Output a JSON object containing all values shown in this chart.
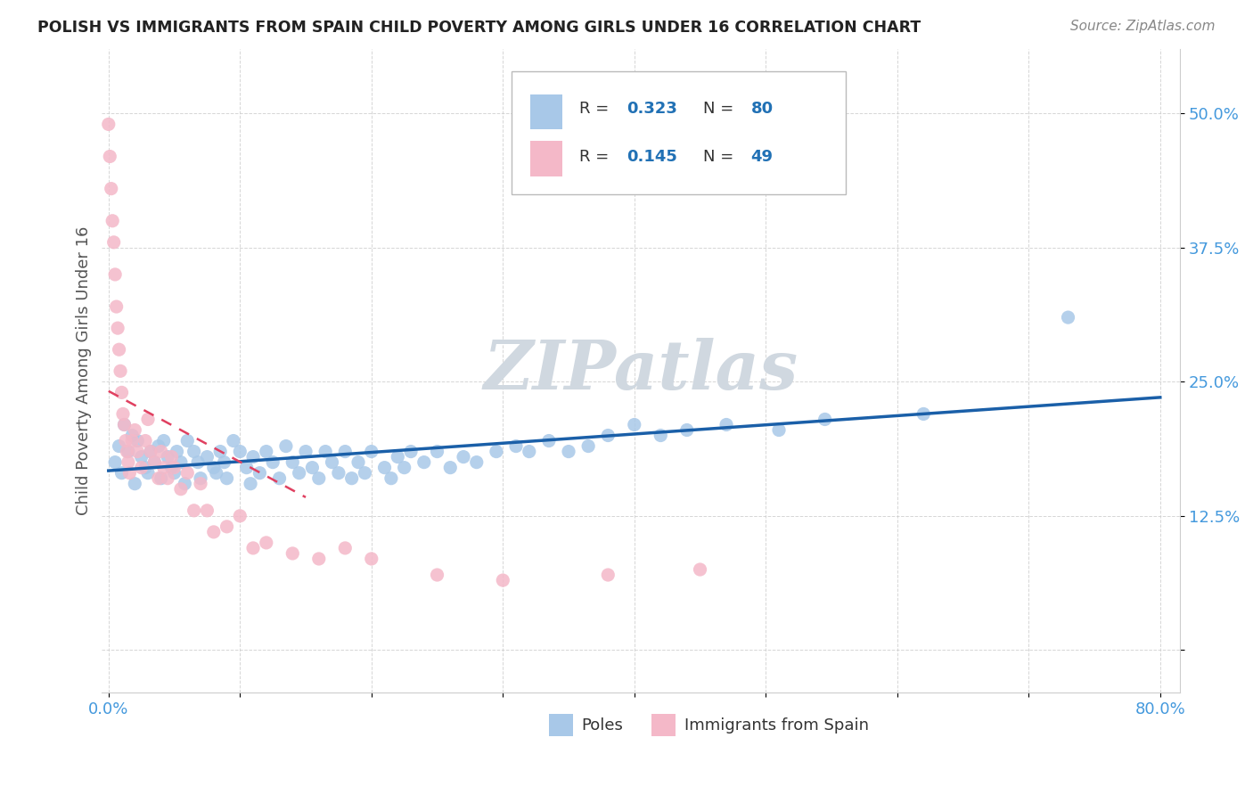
{
  "title": "POLISH VS IMMIGRANTS FROM SPAIN CHILD POVERTY AMONG GIRLS UNDER 16 CORRELATION CHART",
  "source": "Source: ZipAtlas.com",
  "ylabel": "Child Poverty Among Girls Under 16",
  "xlim": [
    -0.005,
    0.815
  ],
  "ylim": [
    -0.04,
    0.56
  ],
  "y_ticks": [
    0.0,
    0.125,
    0.25,
    0.375,
    0.5
  ],
  "y_tick_labels": [
    "",
    "12.5%",
    "25.0%",
    "37.5%",
    "50.0%"
  ],
  "blue_R": 0.323,
  "blue_N": 80,
  "pink_R": 0.145,
  "pink_N": 49,
  "blue_color": "#a8c8e8",
  "pink_color": "#f4b8c8",
  "blue_line_color": "#1a5fa8",
  "pink_line_color": "#e04060",
  "watermark": "ZIPatlas",
  "watermark_color": "#d0d8e0",
  "legend_R_color": "#2171b5",
  "legend_text_color": "#333333",
  "tick_color": "#4499dd",
  "ylabel_color": "#555555",
  "grid_color": "#cccccc",
  "blue_x": [
    0.005,
    0.008,
    0.01,
    0.012,
    0.015,
    0.018,
    0.02,
    0.022,
    0.025,
    0.028,
    0.03,
    0.032,
    0.035,
    0.038,
    0.04,
    0.042,
    0.045,
    0.048,
    0.05,
    0.052,
    0.055,
    0.058,
    0.06,
    0.065,
    0.068,
    0.07,
    0.075,
    0.08,
    0.082,
    0.085,
    0.088,
    0.09,
    0.095,
    0.1,
    0.105,
    0.108,
    0.11,
    0.115,
    0.12,
    0.125,
    0.13,
    0.135,
    0.14,
    0.145,
    0.15,
    0.155,
    0.16,
    0.165,
    0.17,
    0.175,
    0.18,
    0.185,
    0.19,
    0.195,
    0.2,
    0.21,
    0.215,
    0.22,
    0.225,
    0.23,
    0.24,
    0.25,
    0.26,
    0.27,
    0.28,
    0.295,
    0.31,
    0.32,
    0.335,
    0.35,
    0.365,
    0.38,
    0.4,
    0.42,
    0.44,
    0.47,
    0.51,
    0.545,
    0.62,
    0.73
  ],
  "blue_y": [
    0.175,
    0.19,
    0.165,
    0.21,
    0.185,
    0.2,
    0.155,
    0.195,
    0.18,
    0.17,
    0.165,
    0.185,
    0.175,
    0.19,
    0.16,
    0.195,
    0.18,
    0.17,
    0.165,
    0.185,
    0.175,
    0.155,
    0.195,
    0.185,
    0.175,
    0.16,
    0.18,
    0.17,
    0.165,
    0.185,
    0.175,
    0.16,
    0.195,
    0.185,
    0.17,
    0.155,
    0.18,
    0.165,
    0.185,
    0.175,
    0.16,
    0.19,
    0.175,
    0.165,
    0.185,
    0.17,
    0.16,
    0.185,
    0.175,
    0.165,
    0.185,
    0.16,
    0.175,
    0.165,
    0.185,
    0.17,
    0.16,
    0.18,
    0.17,
    0.185,
    0.175,
    0.185,
    0.17,
    0.18,
    0.175,
    0.185,
    0.19,
    0.185,
    0.195,
    0.185,
    0.19,
    0.2,
    0.21,
    0.2,
    0.205,
    0.21,
    0.205,
    0.215,
    0.22,
    0.31
  ],
  "pink_x": [
    0.0,
    0.001,
    0.002,
    0.003,
    0.004,
    0.005,
    0.006,
    0.007,
    0.008,
    0.009,
    0.01,
    0.011,
    0.012,
    0.013,
    0.014,
    0.015,
    0.016,
    0.018,
    0.02,
    0.022,
    0.025,
    0.028,
    0.03,
    0.032,
    0.035,
    0.038,
    0.04,
    0.042,
    0.045,
    0.048,
    0.05,
    0.055,
    0.06,
    0.065,
    0.07,
    0.075,
    0.08,
    0.09,
    0.1,
    0.11,
    0.12,
    0.14,
    0.16,
    0.18,
    0.2,
    0.25,
    0.3,
    0.38,
    0.45
  ],
  "pink_y": [
    0.49,
    0.46,
    0.43,
    0.4,
    0.38,
    0.35,
    0.32,
    0.3,
    0.28,
    0.26,
    0.24,
    0.22,
    0.21,
    0.195,
    0.185,
    0.175,
    0.165,
    0.195,
    0.205,
    0.185,
    0.17,
    0.195,
    0.215,
    0.185,
    0.175,
    0.16,
    0.185,
    0.17,
    0.16,
    0.18,
    0.17,
    0.15,
    0.165,
    0.13,
    0.155,
    0.13,
    0.11,
    0.115,
    0.125,
    0.095,
    0.1,
    0.09,
    0.085,
    0.095,
    0.085,
    0.07,
    0.065,
    0.07,
    0.075
  ]
}
